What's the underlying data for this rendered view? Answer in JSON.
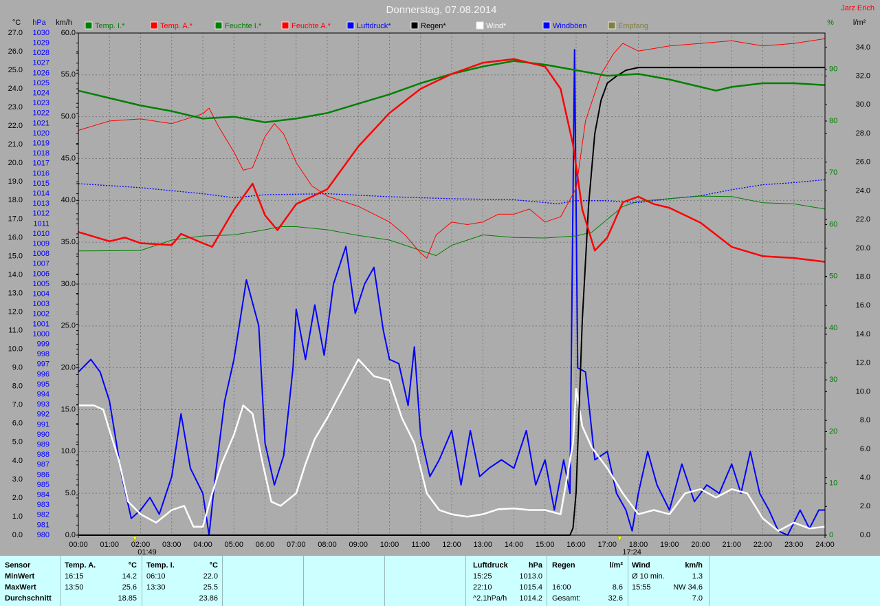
{
  "chart_data": {
    "type": "line",
    "title": "Donnerstag, 07.08.2014",
    "author": "Jarz Erich",
    "grid": true,
    "xlim": [
      0,
      24
    ],
    "xticks": [
      {
        "value": 0,
        "label": "00:00"
      },
      {
        "value": 1,
        "label": "01:00"
      },
      {
        "value": 2,
        "label": "02:00"
      },
      {
        "value": 3,
        "label": "03:00"
      },
      {
        "value": 4,
        "label": "04:00"
      },
      {
        "value": 5,
        "label": "05:00"
      },
      {
        "value": 6,
        "label": "06:00"
      },
      {
        "value": 7,
        "label": "07:00"
      },
      {
        "value": 8,
        "label": "08:00"
      },
      {
        "value": 9,
        "label": "09:00"
      },
      {
        "value": 10,
        "label": "10:00"
      },
      {
        "value": 11,
        "label": "11:00"
      },
      {
        "value": 12,
        "label": "12:00"
      },
      {
        "value": 13,
        "label": "13:00"
      },
      {
        "value": 14,
        "label": "14:00"
      },
      {
        "value": 15,
        "label": "15:00"
      },
      {
        "value": 16,
        "label": "16:00"
      },
      {
        "value": 17,
        "label": "17:00"
      },
      {
        "value": 18,
        "label": "18:00"
      },
      {
        "value": 19,
        "label": "19:00"
      },
      {
        "value": 20,
        "label": "20:00"
      },
      {
        "value": 21,
        "label": "21:00"
      },
      {
        "value": 22,
        "label": "22:00"
      },
      {
        "value": 23,
        "label": "23:00"
      },
      {
        "value": 24,
        "label": "24:00"
      }
    ],
    "annotations": [
      {
        "x": 1.817,
        "label": "01:49"
      },
      {
        "x": 17.4,
        "label": "17:24"
      }
    ],
    "axes": [
      {
        "unit": "°C",
        "color": "#000000",
        "ylim": [
          0,
          27
        ],
        "yticks": [
          {
            "value": 0,
            "label": "0.0"
          },
          {
            "value": 1,
            "label": "1.0"
          },
          {
            "value": 2,
            "label": "2.0"
          },
          {
            "value": 3,
            "label": "3.0"
          },
          {
            "value": 4,
            "label": "4.0"
          },
          {
            "value": 5,
            "label": "5.0"
          },
          {
            "value": 6,
            "label": "6.0"
          },
          {
            "value": 7,
            "label": "7.0"
          },
          {
            "value": 8,
            "label": "8.0"
          },
          {
            "value": 9,
            "label": "9.0"
          },
          {
            "value": 10,
            "label": "10.0"
          },
          {
            "value": 11,
            "label": "11.0"
          },
          {
            "value": 12,
            "label": "12.0"
          },
          {
            "value": 13,
            "label": "13.0"
          },
          {
            "value": 14,
            "label": "14.0"
          },
          {
            "value": 15,
            "label": "15.0"
          },
          {
            "value": 16,
            "label": "16.0"
          },
          {
            "value": 17,
            "label": "17.0"
          },
          {
            "value": 18,
            "label": "18.0"
          },
          {
            "value": 19,
            "label": "19.0"
          },
          {
            "value": 20,
            "label": "20.0"
          },
          {
            "value": 21,
            "label": "21.0"
          },
          {
            "value": 22,
            "label": "22.0"
          },
          {
            "value": 23,
            "label": "23.0"
          },
          {
            "value": 24,
            "label": "24.0"
          },
          {
            "value": 25,
            "label": "25.0"
          },
          {
            "value": 26,
            "label": "26.0"
          },
          {
            "value": 27,
            "label": "27.0"
          }
        ]
      },
      {
        "unit": "hPa",
        "color": "#0000ff",
        "ylim": [
          980,
          1030
        ],
        "yticks": [
          980,
          981,
          982,
          983,
          984,
          985,
          986,
          987,
          988,
          989,
          990,
          991,
          992,
          993,
          994,
          995,
          996,
          997,
          998,
          999,
          1000,
          1001,
          1002,
          1003,
          1004,
          1005,
          1006,
          1007,
          1008,
          1009,
          1010,
          1011,
          1012,
          1013,
          1014,
          1015,
          1016,
          1017,
          1018,
          1019,
          1020,
          1021,
          1022,
          1023,
          1024,
          1025,
          1026,
          1027,
          1028,
          1029,
          1030
        ]
      },
      {
        "unit": "km/h",
        "color": "#000000",
        "grid": true,
        "ylim": [
          0,
          60
        ],
        "yticks": [
          {
            "value": 0,
            "label": "0.0"
          },
          {
            "value": 5,
            "label": "5.0"
          },
          {
            "value": 10,
            "label": "10.0"
          },
          {
            "value": 15,
            "label": "15.0"
          },
          {
            "value": 20,
            "label": "20.0"
          },
          {
            "value": 25,
            "label": "25.0"
          },
          {
            "value": 30,
            "label": "30.0"
          },
          {
            "value": 35,
            "label": "35.0"
          },
          {
            "value": 40,
            "label": "40.0"
          },
          {
            "value": 45,
            "label": "45.0"
          },
          {
            "value": 50,
            "label": "50.0"
          },
          {
            "value": 55,
            "label": "55.0"
          },
          {
            "value": 60,
            "label": "60.0"
          }
        ]
      },
      {
        "unit": "%",
        "color": "#008000",
        "ylim": [
          0,
          97
        ],
        "yticks": [
          0,
          10,
          20,
          30,
          40,
          50,
          60,
          70,
          80,
          90
        ]
      },
      {
        "unit": "l/m²",
        "color": "#000000",
        "ylim": [
          0,
          35
        ],
        "yticks": [
          {
            "value": 0,
            "label": "0.0"
          },
          {
            "value": 2,
            "label": "2.0"
          },
          {
            "value": 4,
            "label": "4.0"
          },
          {
            "value": 6,
            "label": "6.0"
          },
          {
            "value": 8,
            "label": "8.0"
          },
          {
            "value": 10,
            "label": "10.0"
          },
          {
            "value": 12,
            "label": "12.0"
          },
          {
            "value": 14,
            "label": "14.0"
          },
          {
            "value": 16,
            "label": "16.0"
          },
          {
            "value": 18,
            "label": "18.0"
          },
          {
            "value": 20,
            "label": "20.0"
          },
          {
            "value": 22,
            "label": "22.0"
          },
          {
            "value": 24,
            "label": "24.0"
          },
          {
            "value": 26,
            "label": "26.0"
          },
          {
            "value": 28,
            "label": "28.0"
          },
          {
            "value": 30,
            "label": "30.0"
          },
          {
            "value": 32,
            "label": "32.0"
          },
          {
            "value": 34,
            "label": "34.0"
          }
        ]
      }
    ],
    "series": [
      {
        "name": "Temp. I.*",
        "color": "#008000",
        "axis": 0,
        "x": [
          0,
          1,
          2,
          3,
          4,
          5,
          6,
          7,
          8,
          9,
          10,
          11,
          12,
          13,
          14,
          15,
          16,
          17,
          18,
          19,
          20,
          20.5,
          21,
          22,
          23,
          24
        ],
        "values": [
          23.9,
          23.5,
          23.1,
          22.8,
          22.4,
          22.5,
          22.2,
          22.4,
          22.7,
          23.2,
          23.7,
          24.3,
          24.8,
          25.2,
          25.5,
          25.3,
          25.0,
          24.7,
          24.8,
          24.5,
          24.1,
          23.9,
          24.1,
          24.3,
          24.3,
          24.2
        ]
      },
      {
        "name": "Temp. A.*",
        "color": "#ff0000",
        "axis": 0,
        "x": [
          0,
          1,
          1.5,
          2,
          3,
          3.3,
          4,
          4.3,
          5,
          5.6,
          6,
          6.4,
          7,
          8,
          9,
          10,
          11,
          12,
          13,
          14,
          15,
          15.5,
          15.9,
          16.2,
          16.6,
          17,
          17.5,
          18,
          18.5,
          19,
          20,
          21,
          22,
          23,
          24
        ],
        "values": [
          16.3,
          15.8,
          16.0,
          15.7,
          15.6,
          16.2,
          15.7,
          15.5,
          17.5,
          18.9,
          17.2,
          16.4,
          17.8,
          18.6,
          20.9,
          22.7,
          24.0,
          24.8,
          25.4,
          25.6,
          25.2,
          24.0,
          21.0,
          17.5,
          15.3,
          16.0,
          17.9,
          18.2,
          17.8,
          17.6,
          16.8,
          15.5,
          15.0,
          14.9,
          14.7
        ]
      },
      {
        "name": "Feuchte I.*",
        "color": "#008000",
        "axis": 3,
        "x": [
          0,
          2,
          2.5,
          3,
          4,
          5,
          6,
          6.5,
          7,
          8,
          9,
          10,
          11,
          11.5,
          12,
          13,
          14,
          15,
          16,
          16.5,
          17,
          17.5,
          18,
          19,
          20,
          21,
          22,
          23,
          24
        ],
        "values": [
          54.9,
          55.0,
          56.0,
          57.0,
          57.8,
          58.0,
          59.0,
          59.6,
          59.6,
          59.0,
          57.9,
          57.0,
          55.0,
          54.0,
          56.0,
          58.0,
          57.5,
          57.4,
          57.8,
          58.5,
          61.0,
          63.5,
          64.5,
          65.0,
          65.5,
          65.4,
          64.2,
          64.0,
          63.0
        ]
      },
      {
        "name": "Feuchte A.*",
        "color": "#ff0000",
        "axis": 3,
        "x": [
          0,
          1,
          2,
          3,
          4,
          4.2,
          4.5,
          5,
          5.3,
          5.6,
          6,
          6.3,
          6.6,
          7,
          7.5,
          8,
          9,
          10,
          10.5,
          11,
          11.2,
          11.5,
          12,
          12.5,
          13,
          13.5,
          14,
          14.5,
          15,
          15.5,
          16,
          16.3,
          16.8,
          17.2,
          17.5,
          18,
          19,
          20,
          21,
          22,
          23,
          24
        ],
        "values": [
          78.2,
          80.0,
          80.4,
          79.5,
          81.4,
          82.5,
          79.0,
          74.0,
          70.5,
          71.0,
          77.0,
          79.5,
          77.5,
          72.0,
          67.5,
          65.5,
          63.5,
          60.5,
          58.0,
          54.5,
          53.5,
          58.0,
          60.5,
          60.0,
          60.5,
          62.0,
          62.0,
          63.0,
          60.5,
          61.5,
          67.0,
          80.0,
          89.0,
          93.0,
          95.0,
          93.5,
          94.5,
          95.0,
          95.5,
          94.5,
          95.0,
          95.9
        ]
      },
      {
        "name": "Luftdruck*",
        "color": "#0000ff",
        "axis": 1,
        "x": [
          0,
          2,
          4,
          5,
          6,
          8,
          10,
          12,
          14,
          15.4,
          16,
          17,
          18,
          19,
          20,
          21,
          22,
          23,
          24
        ],
        "values": [
          1015.0,
          1014.6,
          1014.0,
          1013.6,
          1013.9,
          1014.0,
          1013.7,
          1013.5,
          1013.4,
          1013.0,
          1013.3,
          1013.3,
          1013.1,
          1013.5,
          1013.8,
          1014.4,
          1014.9,
          1015.1,
          1015.4
        ]
      },
      {
        "name": "Regen*",
        "color": "#000000",
        "axis": 4,
        "x": [
          0,
          15.8,
          15.9,
          16,
          16.2,
          16.4,
          16.6,
          16.8,
          17,
          17.3,
          17.6,
          18,
          24
        ],
        "values": [
          0,
          0,
          0.5,
          3,
          15,
          23,
          28,
          30.3,
          31.5,
          32,
          32.4,
          32.6,
          32.6
        ]
      },
      {
        "name": "Wind*",
        "color": "#ffffff",
        "axis": 2,
        "x": [
          0,
          0.5,
          0.8,
          1,
          1.3,
          1.6,
          2,
          2.5,
          3,
          3.4,
          3.7,
          4,
          4.3,
          4.6,
          5,
          5.3,
          5.6,
          5.9,
          6.2,
          6.5,
          7,
          7.3,
          7.6,
          8,
          8.5,
          9,
          9.5,
          10,
          10.4,
          10.8,
          11.2,
          11.6,
          12,
          12.5,
          13,
          13.5,
          14,
          14.5,
          15,
          15.5,
          15.9,
          16,
          16.2,
          16.5,
          17,
          17.5,
          18,
          18.5,
          19,
          19.5,
          20,
          20.5,
          21,
          21.5,
          22,
          22.5,
          23,
          23.5,
          24
        ],
        "values": [
          15.5,
          15.5,
          15.0,
          12.5,
          9,
          4,
          2.5,
          1.5,
          3,
          3.5,
          1,
          1,
          5,
          8.5,
          12,
          15.5,
          14.5,
          9,
          4,
          3.5,
          5,
          8.5,
          11.5,
          14,
          17.5,
          21,
          19,
          18.5,
          14,
          11,
          5,
          3,
          2.5,
          2.2,
          2.5,
          3.1,
          3.2,
          3,
          3,
          2.5,
          11,
          17.5,
          13,
          10.5,
          8,
          5,
          2.5,
          3,
          2.5,
          5,
          5.5,
          4.5,
          5.5,
          5,
          2,
          0.5,
          1.5,
          0.8,
          1
        ]
      },
      {
        "name": "Windböen",
        "color": "#0000ff",
        "axis": 2,
        "x": [
          0,
          0.4,
          0.7,
          1,
          1.4,
          1.7,
          2,
          2.3,
          2.6,
          3,
          3.3,
          3.6,
          4,
          4.2,
          4.4,
          4.7,
          5,
          5.4,
          5.8,
          6,
          6.3,
          6.6,
          6.9,
          7,
          7.3,
          7.6,
          7.9,
          8.2,
          8.6,
          8.9,
          9.2,
          9.5,
          9.8,
          10,
          10.3,
          10.6,
          10.8,
          11,
          11.3,
          11.6,
          12,
          12.3,
          12.6,
          12.9,
          13.2,
          13.6,
          14,
          14.4,
          14.7,
          15,
          15.3,
          15.6,
          15.8,
          15.95,
          16.05,
          16.3,
          16.6,
          17,
          17.3,
          17.6,
          17.8,
          18,
          18.3,
          18.6,
          19,
          19.4,
          19.8,
          20.2,
          20.6,
          21,
          21.3,
          21.6,
          21.9,
          22.2,
          22.5,
          22.8,
          23.2,
          23.5,
          23.8,
          24
        ],
        "values": [
          19.5,
          21,
          19.5,
          16,
          7,
          2,
          3,
          4.5,
          2.5,
          7,
          14.5,
          8,
          5,
          0,
          7,
          16,
          21,
          30.5,
          25,
          11,
          6,
          9.5,
          20,
          27,
          21,
          27.5,
          21.5,
          30,
          34.5,
          26.5,
          30,
          32,
          24.5,
          21,
          20.5,
          15.5,
          22.5,
          12,
          7,
          9,
          12.5,
          6,
          12.5,
          7,
          8,
          9,
          8,
          12.5,
          6,
          9,
          3,
          9,
          5,
          58,
          20,
          19.5,
          9,
          10,
          5,
          3,
          0.5,
          5,
          10,
          6,
          3,
          8.5,
          4,
          6,
          5,
          8.5,
          5,
          10,
          5,
          3,
          0.5,
          0,
          3,
          0.8,
          3,
          3
        ]
      },
      {
        "name": "Empfang",
        "color": "#808040"
      }
    ]
  },
  "table": {
    "label_column": [
      "Sensor",
      "MinWert",
      "MaxWert",
      "Durchschnitt"
    ],
    "groups": [
      {
        "header": [
          "Temp. A.",
          "°C"
        ],
        "min": [
          "16:15",
          "14.2"
        ],
        "max": [
          "13:50",
          "25.6"
        ],
        "avg": "18.85"
      },
      {
        "header": [
          "Temp. I.",
          "°C"
        ],
        "min": [
          "06:10",
          "22.0"
        ],
        "max": [
          "13:30",
          "25.5"
        ],
        "avg": "23.86"
      },
      {
        "header": [
          "Luftdruck",
          "hPa"
        ],
        "min": [
          "15:25",
          "1013.0"
        ],
        "max": [
          "22:10",
          "1015.4"
        ],
        "avg_label": "^2.1hPa/h",
        "avg": "1014.2"
      },
      {
        "header": [
          "Regen",
          "l/m²"
        ],
        "max": [
          "16:00",
          "8.6"
        ],
        "avg_label": "Gesamt:",
        "avg": "32.6"
      },
      {
        "header": [
          "Wind",
          "km/h"
        ],
        "min": [
          "Ø 10 min.",
          "1.3"
        ],
        "max": [
          "15:55",
          "NW 34.6"
        ],
        "avg": "7.0"
      }
    ]
  }
}
